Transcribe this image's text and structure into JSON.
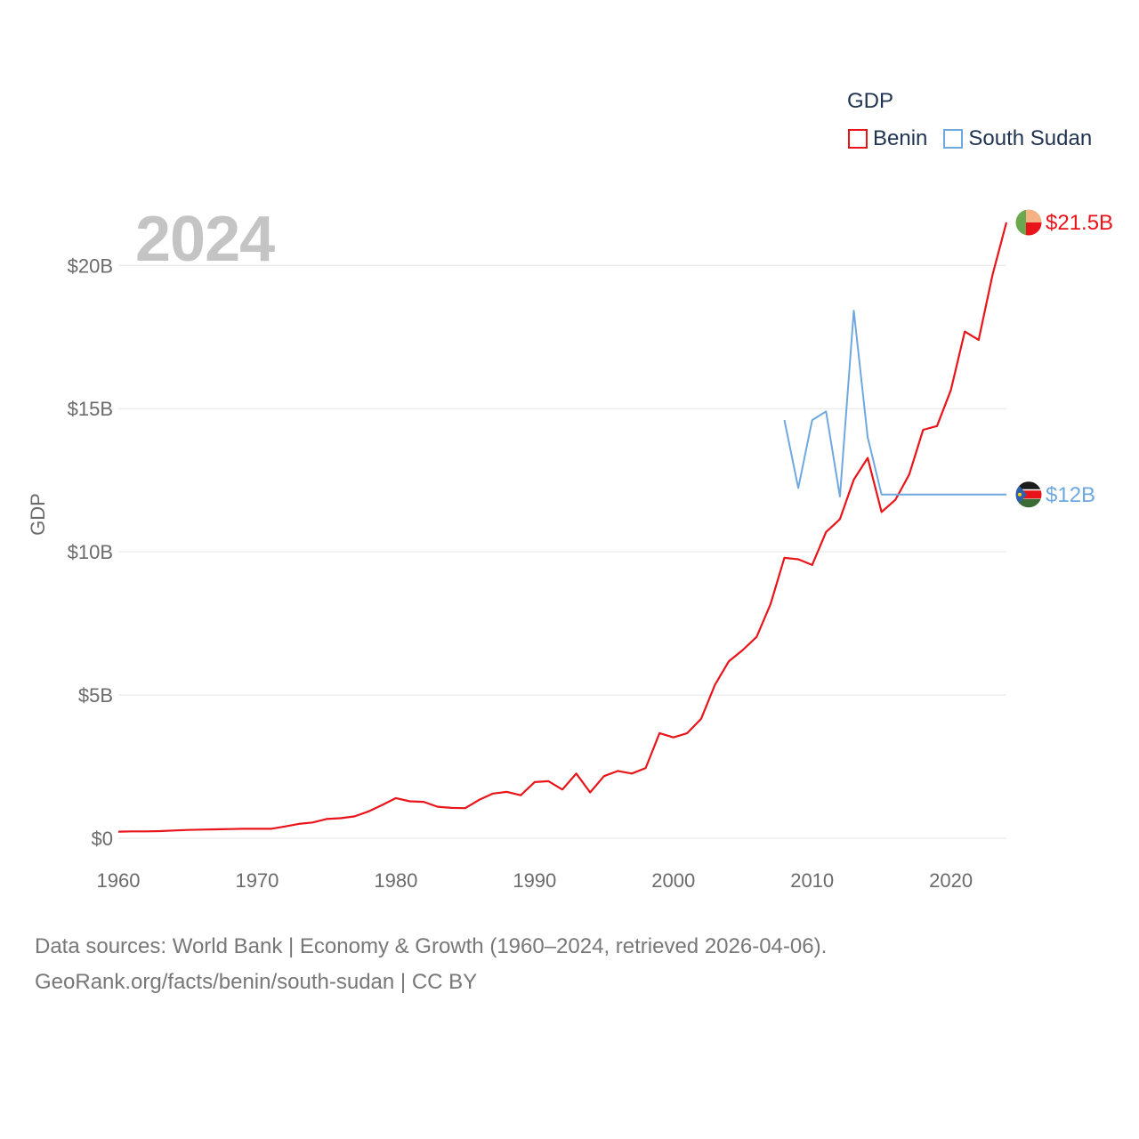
{
  "chart_data": {
    "type": "line",
    "title": "GDP",
    "ylabel": "GDP",
    "xlabel": "",
    "year_label": "2024",
    "xlim": [
      1960,
      2024
    ],
    "ylim": [
      0,
      21.5
    ],
    "x_ticks": [
      1960,
      1970,
      1980,
      1990,
      2000,
      2010,
      2020
    ],
    "x_tick_labels": [
      "1960",
      "1970",
      "1980",
      "1990",
      "2000",
      "2010",
      "2020"
    ],
    "y_ticks": [
      0,
      5,
      10,
      15,
      20
    ],
    "y_tick_labels": [
      "$0",
      "$5B",
      "$10B",
      "$15B",
      "$20B"
    ],
    "grid": true,
    "legend_position": "top-right",
    "series": [
      {
        "name": "Benin",
        "color": "#e8141a",
        "end_label": "$21.5B",
        "flag_icon": "benin-flag-icon",
        "x": [
          1960,
          1961,
          1962,
          1963,
          1964,
          1965,
          1966,
          1967,
          1968,
          1969,
          1970,
          1971,
          1972,
          1973,
          1974,
          1975,
          1976,
          1977,
          1978,
          1979,
          1980,
          1981,
          1982,
          1983,
          1984,
          1985,
          1986,
          1987,
          1988,
          1989,
          1990,
          1991,
          1992,
          1993,
          1994,
          1995,
          1996,
          1997,
          1998,
          1999,
          2000,
          2001,
          2002,
          2003,
          2004,
          2005,
          2006,
          2007,
          2008,
          2009,
          2010,
          2011,
          2012,
          2013,
          2014,
          2015,
          2016,
          2017,
          2018,
          2019,
          2020,
          2021,
          2022,
          2023,
          2024
        ],
        "values": [
          0.23,
          0.24,
          0.24,
          0.25,
          0.27,
          0.29,
          0.3,
          0.31,
          0.32,
          0.33,
          0.33,
          0.33,
          0.41,
          0.5,
          0.55,
          0.67,
          0.7,
          0.76,
          0.93,
          1.16,
          1.4,
          1.29,
          1.27,
          1.1,
          1.06,
          1.05,
          1.34,
          1.56,
          1.62,
          1.5,
          1.96,
          1.99,
          1.7,
          2.26,
          1.6,
          2.17,
          2.35,
          2.26,
          2.45,
          3.67,
          3.52,
          3.67,
          4.17,
          5.36,
          6.18,
          6.57,
          7.03,
          8.17,
          9.79,
          9.74,
          9.54,
          10.69,
          11.14,
          12.52,
          13.28,
          11.39,
          11.82,
          12.7,
          14.26,
          14.39,
          15.65,
          17.69,
          17.4,
          19.67,
          21.5
        ]
      },
      {
        "name": "South Sudan",
        "color": "#6fa8e0",
        "end_label": "$12B",
        "flag_icon": "south-sudan-flag-icon",
        "x": [
          2008,
          2009,
          2010,
          2011,
          2012,
          2013,
          2014,
          2015,
          2016,
          2017,
          2018,
          2019,
          2020,
          2021,
          2022,
          2023,
          2024
        ],
        "values": [
          14.6,
          12.23,
          14.6,
          14.9,
          11.93,
          18.42,
          14.0,
          12.0,
          12.0,
          12.0,
          12.0,
          12.0,
          12.0,
          12.0,
          12.0,
          12.0,
          12.0
        ]
      }
    ]
  },
  "source": {
    "line1": "Data sources: World Bank | Economy & Growth (1960–2024, retrieved 2026-04-06).",
    "line2": "GeoRank.org/facts/benin/south-sudan | CC BY"
  }
}
